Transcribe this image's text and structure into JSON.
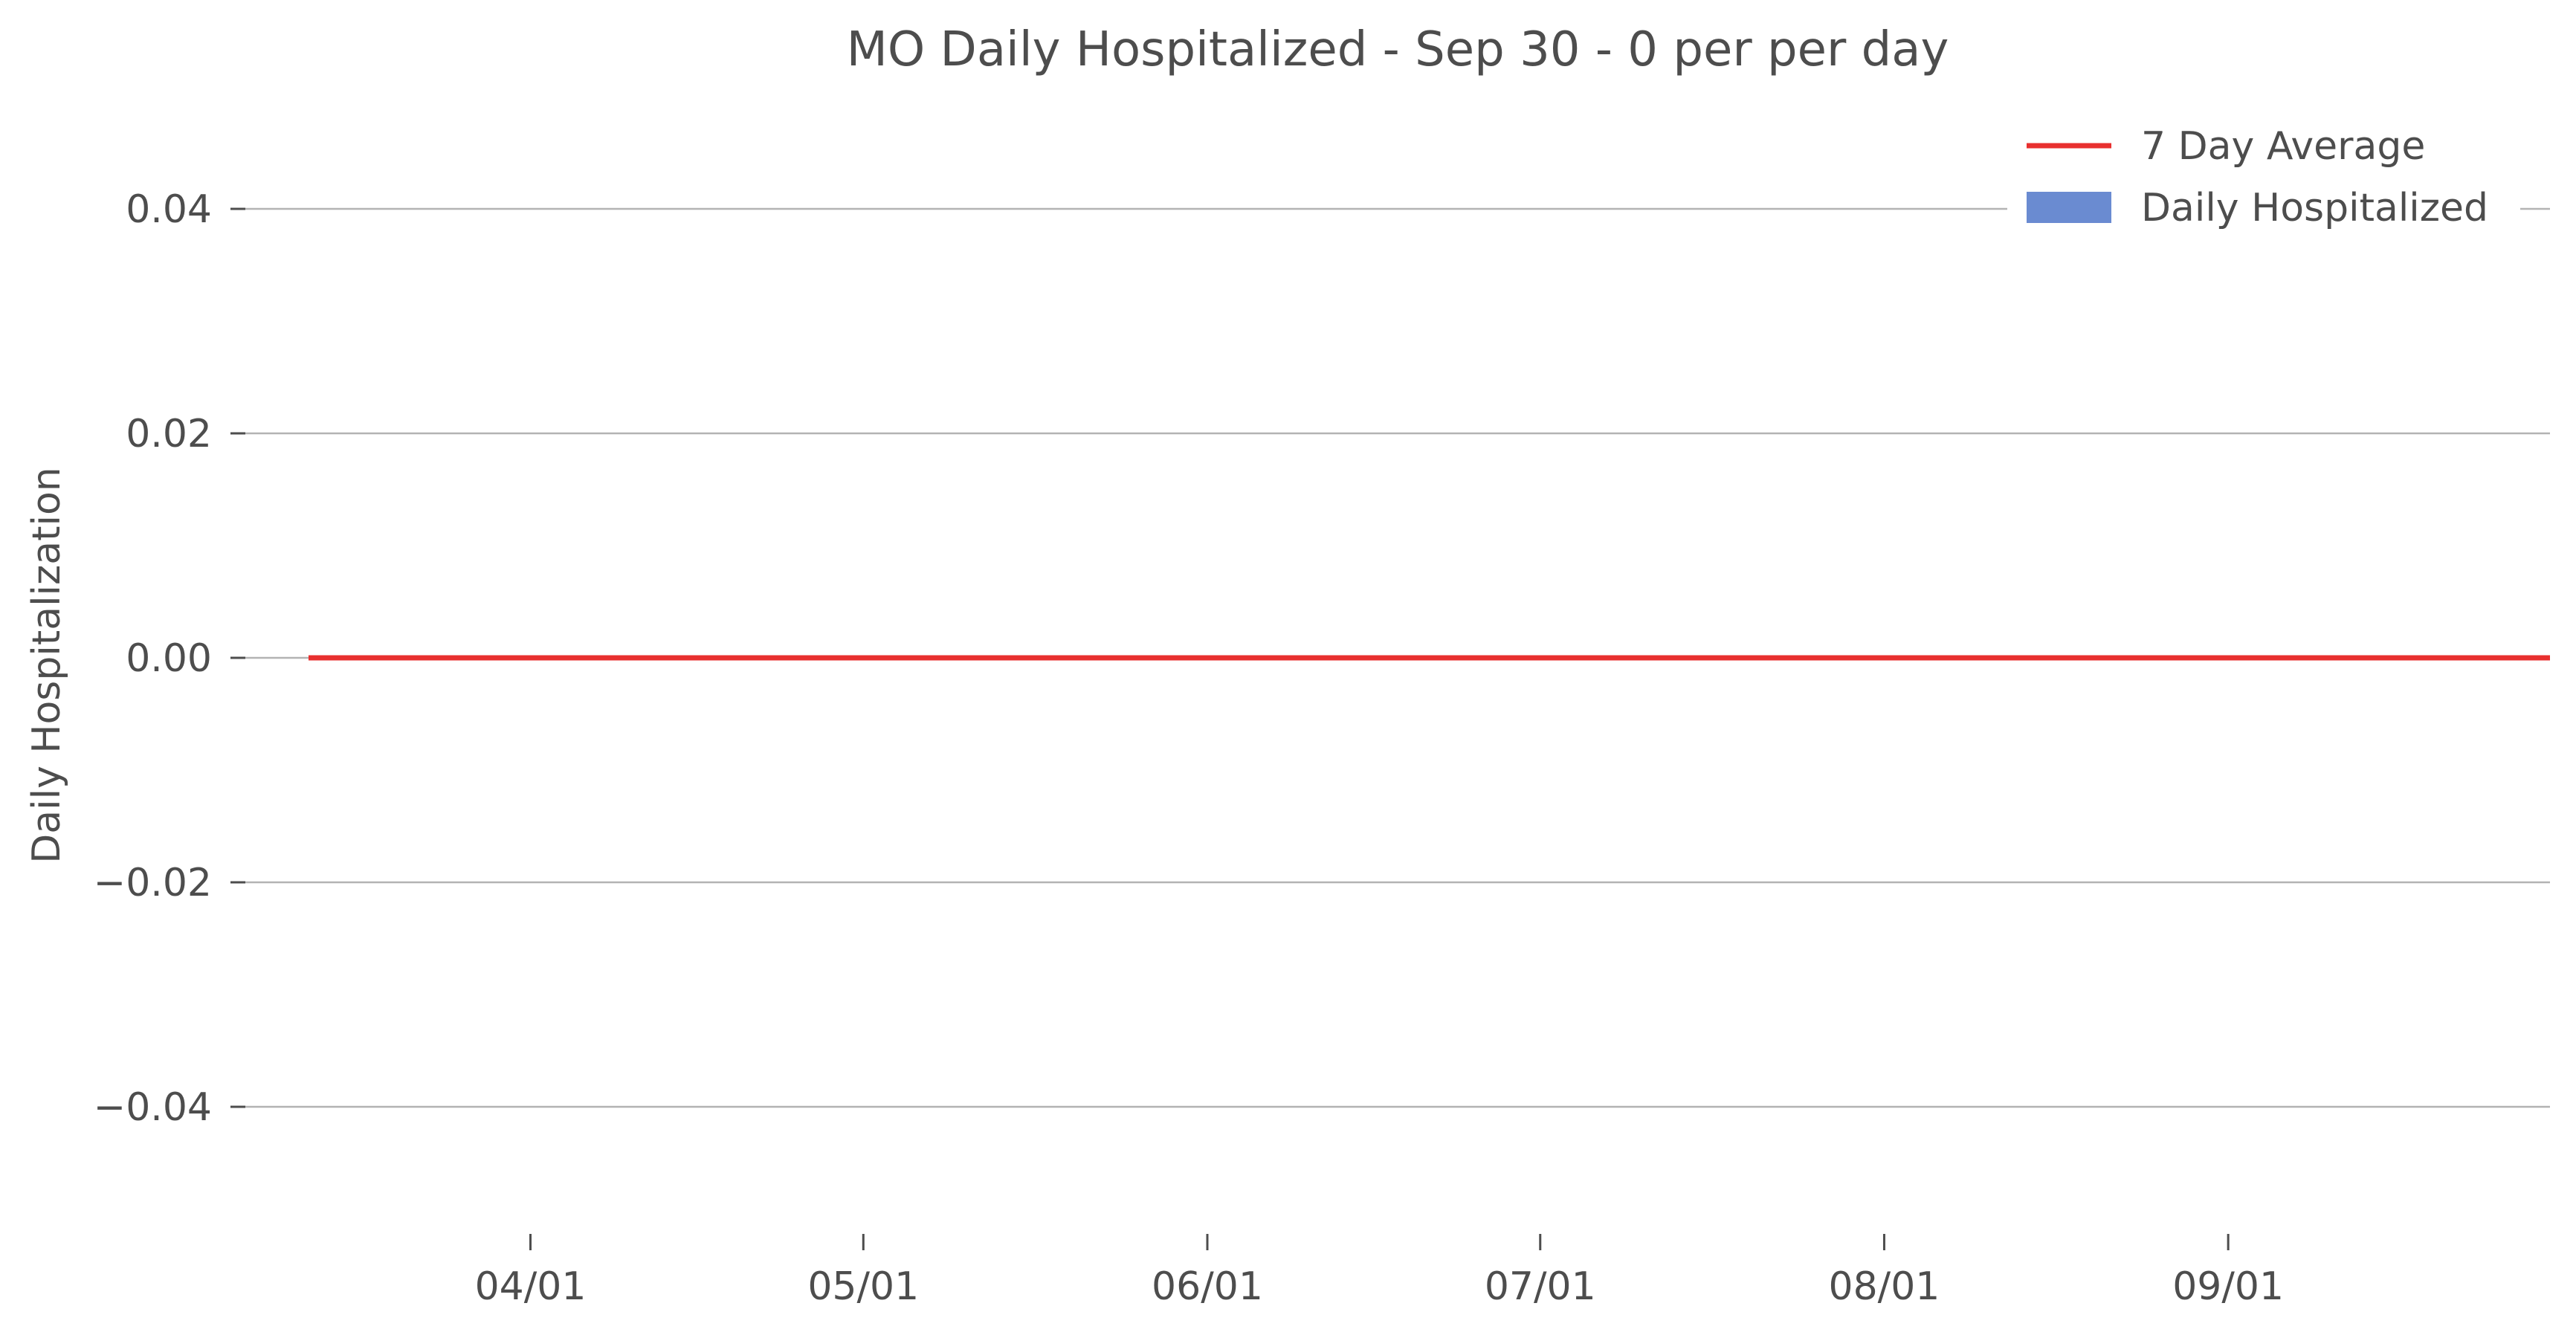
{
  "chart_data": {
    "type": "bar",
    "title": "MO Daily Hospitalized - Sep 30 - 0 per per day",
    "ylabel": "Daily Hospitalization",
    "xlabel": "",
    "ylim": [
      -0.05,
      0.05
    ],
    "x_range": [
      "2020-03-12",
      "2020-09-30"
    ],
    "y_ticks": [
      0.04,
      0.02,
      0.0,
      -0.02,
      -0.04
    ],
    "y_tick_labels": [
      "0.04",
      "0.02",
      "0.00",
      "−0.02",
      "−0.04"
    ],
    "x_ticks": [
      "2020-04-01",
      "2020-05-01",
      "2020-06-01",
      "2020-07-01",
      "2020-08-01",
      "2020-09-01"
    ],
    "x_tick_labels": [
      "04/01",
      "05/01",
      "06/01",
      "07/01",
      "08/01",
      "09/01"
    ],
    "grid": "y",
    "legend_position": "top-right",
    "series": [
      {
        "name": "7 Day Average",
        "kind": "line",
        "color": "#e8302f",
        "x": [
          "2020-03-12",
          "2020-09-30"
        ],
        "y": [
          0,
          0
        ]
      },
      {
        "name": "Daily Hospitalized",
        "kind": "bar",
        "color": "#6a8bd1",
        "x": [
          "2020-03-12",
          "2020-09-30"
        ],
        "y": [
          0,
          0
        ]
      }
    ]
  }
}
